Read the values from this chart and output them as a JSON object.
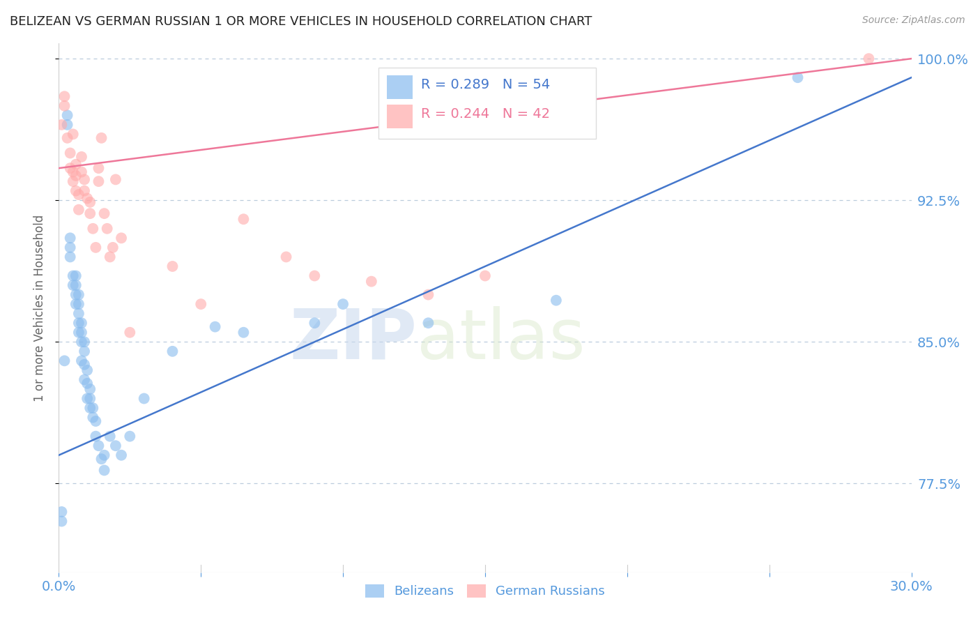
{
  "title": "BELIZEAN VS GERMAN RUSSIAN 1 OR MORE VEHICLES IN HOUSEHOLD CORRELATION CHART",
  "source": "Source: ZipAtlas.com",
  "ylabel": "1 or more Vehicles in Household",
  "xlim": [
    0.0,
    0.3
  ],
  "ylim": [
    0.728,
    1.008
  ],
  "yticks": [
    0.775,
    0.85,
    0.925,
    1.0
  ],
  "ytick_labels": [
    "77.5%",
    "85.0%",
    "92.5%",
    "100.0%"
  ],
  "xticks": [
    0.0,
    0.05,
    0.1,
    0.15,
    0.2,
    0.25,
    0.3
  ],
  "legend_blue_R": "R = 0.289",
  "legend_blue_N": "N = 54",
  "legend_pink_R": "R = 0.244",
  "legend_pink_N": "N = 42",
  "blue_color": "#88BBEE",
  "pink_color": "#FFAAAA",
  "blue_line_color": "#4477CC",
  "pink_line_color": "#EE7799",
  "axis_color": "#5599DD",
  "grid_color": "#BBCCDD",
  "watermark_zip": "ZIP",
  "watermark_atlas": "atlas",
  "blue_scatter_x": [
    0.001,
    0.001,
    0.002,
    0.003,
    0.003,
    0.004,
    0.004,
    0.004,
    0.005,
    0.005,
    0.006,
    0.006,
    0.006,
    0.006,
    0.007,
    0.007,
    0.007,
    0.007,
    0.007,
    0.008,
    0.008,
    0.008,
    0.008,
    0.009,
    0.009,
    0.009,
    0.009,
    0.01,
    0.01,
    0.01,
    0.011,
    0.011,
    0.011,
    0.012,
    0.012,
    0.013,
    0.013,
    0.014,
    0.015,
    0.016,
    0.016,
    0.018,
    0.02,
    0.022,
    0.025,
    0.03,
    0.04,
    0.055,
    0.065,
    0.09,
    0.1,
    0.13,
    0.175,
    0.26
  ],
  "blue_scatter_y": [
    0.76,
    0.755,
    0.84,
    0.965,
    0.97,
    0.895,
    0.9,
    0.905,
    0.88,
    0.885,
    0.87,
    0.875,
    0.88,
    0.885,
    0.855,
    0.86,
    0.865,
    0.87,
    0.875,
    0.84,
    0.85,
    0.855,
    0.86,
    0.83,
    0.838,
    0.845,
    0.85,
    0.82,
    0.828,
    0.835,
    0.815,
    0.82,
    0.825,
    0.81,
    0.815,
    0.8,
    0.808,
    0.795,
    0.788,
    0.782,
    0.79,
    0.8,
    0.795,
    0.79,
    0.8,
    0.82,
    0.845,
    0.858,
    0.855,
    0.86,
    0.87,
    0.86,
    0.872,
    0.99
  ],
  "pink_scatter_x": [
    0.001,
    0.002,
    0.002,
    0.003,
    0.004,
    0.004,
    0.005,
    0.005,
    0.005,
    0.006,
    0.006,
    0.006,
    0.007,
    0.007,
    0.008,
    0.008,
    0.009,
    0.009,
    0.01,
    0.011,
    0.011,
    0.012,
    0.013,
    0.014,
    0.014,
    0.015,
    0.016,
    0.017,
    0.018,
    0.019,
    0.02,
    0.022,
    0.025,
    0.04,
    0.05,
    0.065,
    0.08,
    0.09,
    0.11,
    0.13,
    0.15,
    0.285
  ],
  "pink_scatter_y": [
    0.965,
    0.975,
    0.98,
    0.958,
    0.942,
    0.95,
    0.935,
    0.94,
    0.96,
    0.93,
    0.938,
    0.944,
    0.92,
    0.928,
    0.94,
    0.948,
    0.93,
    0.936,
    0.926,
    0.918,
    0.924,
    0.91,
    0.9,
    0.935,
    0.942,
    0.958,
    0.918,
    0.91,
    0.895,
    0.9,
    0.936,
    0.905,
    0.855,
    0.89,
    0.87,
    0.915,
    0.895,
    0.885,
    0.882,
    0.875,
    0.885,
    1.0
  ],
  "blue_line_x0": 0.0,
  "blue_line_y0": 0.79,
  "blue_line_x1": 0.3,
  "blue_line_y1": 0.99,
  "pink_line_x0": 0.0,
  "pink_line_y0": 0.942,
  "pink_line_x1": 0.3,
  "pink_line_y1": 1.0
}
